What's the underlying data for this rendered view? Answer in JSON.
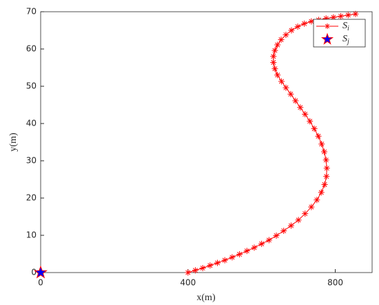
{
  "chart_data": {
    "type": "line",
    "xlabel": "x(m)",
    "ylabel": "y(m)",
    "xlim": [
      0,
      900
    ],
    "ylim": [
      0,
      70
    ],
    "xticks": [
      0,
      400,
      800
    ],
    "yticks": [
      0,
      10,
      20,
      30,
      40,
      50,
      60,
      70
    ],
    "legend": "upper right",
    "series": [
      {
        "name": "Si",
        "color": "#ff0000",
        "marker": "asterisk",
        "x": [
          400,
          420,
          440,
          460,
          480,
          500,
          520,
          540,
          560,
          580,
          600,
          620,
          640,
          660,
          680,
          700,
          718,
          735,
          750,
          762,
          771,
          776,
          777,
          775,
          770,
          763,
          754,
          743,
          731,
          718,
          705,
          692,
          679,
          666,
          654,
          643,
          636,
          632,
          632,
          636,
          643,
          653,
          666,
          681,
          698,
          716,
          735,
          755,
          775,
          795,
          815,
          835,
          855
        ],
        "values": [
          0,
          0.6,
          1.2,
          1.9,
          2.6,
          3.3,
          4.1,
          4.9,
          5.8,
          6.7,
          7.7,
          8.7,
          9.9,
          11.2,
          12.6,
          14.1,
          15.8,
          17.6,
          19.5,
          21.5,
          23.6,
          25.8,
          28,
          30.2,
          32.4,
          34.5,
          36.6,
          38.6,
          40.6,
          42.5,
          44.3,
          46.1,
          47.9,
          49.6,
          51.3,
          53,
          54.7,
          56.4,
          58,
          59.6,
          61.1,
          62.5,
          63.8,
          65,
          66,
          66.8,
          67.4,
          67.8,
          68.2,
          68.5,
          68.8,
          69.1,
          69.4
        ]
      },
      {
        "name": "Sj",
        "color": "#0000ff",
        "edge_color": "#ff0000",
        "marker": "star",
        "x": [
          0
        ],
        "values": [
          0
        ]
      }
    ]
  }
}
